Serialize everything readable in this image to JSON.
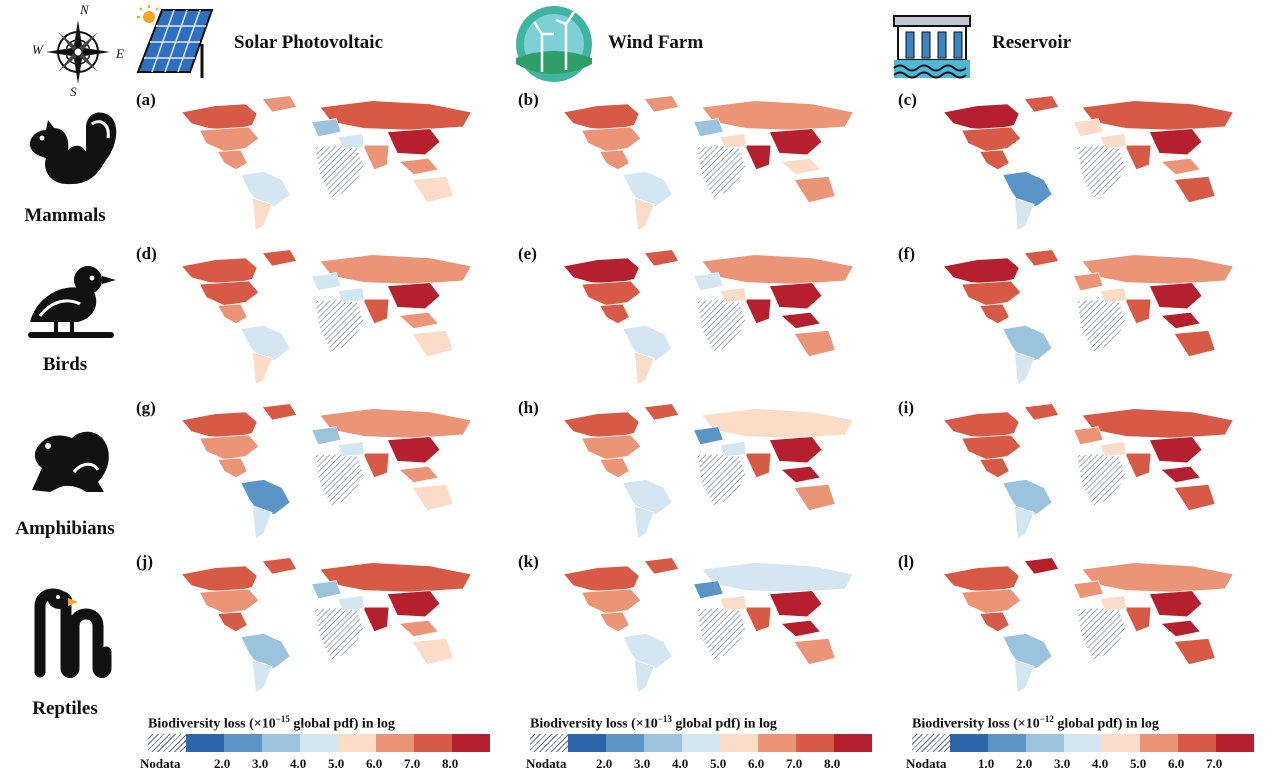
{
  "header": {
    "columns": [
      {
        "title": "Solar Photovoltaic",
        "icon": "solar-panel-icon"
      },
      {
        "title": "Wind Farm",
        "icon": "wind-turbine-icon"
      },
      {
        "title": "Reservoir",
        "icon": "dam-icon"
      }
    ],
    "compass": {
      "icon": "compass-rose-icon",
      "n": "N",
      "e": "E",
      "s": "S",
      "w": "W"
    }
  },
  "rows": [
    {
      "label": "Mammals",
      "icon": "squirrel-icon"
    },
    {
      "label": "Birds",
      "icon": "bird-icon"
    },
    {
      "label": "Amphibians",
      "icon": "frog-icon"
    },
    {
      "label": "Reptiles",
      "icon": "snake-icon"
    }
  ],
  "panels": [
    "(a)",
    "(b)",
    "(c)",
    "(d)",
    "(e)",
    "(f)",
    "(g)",
    "(h)",
    "(i)",
    "(j)",
    "(k)",
    "(l)"
  ],
  "legends": [
    {
      "title_pre": "Biodiversity loss (×10",
      "exp": "−15",
      "title_post": " global pdf)  in log",
      "nodata": "Nodata",
      "ticks": [
        "2.0",
        "3.0",
        "4.0",
        "5.0",
        "6.0",
        "7.0",
        "8.0"
      ]
    },
    {
      "title_pre": "Biodiversity loss (×10",
      "exp": "−13",
      "title_post": " global pdf)  in log",
      "nodata": "Nodata",
      "ticks": [
        "2.0",
        "3.0",
        "4.0",
        "5.0",
        "6.0",
        "7.0",
        "8.0"
      ]
    },
    {
      "title_pre": "Biodiversity loss (×10",
      "exp": "−12",
      "title_post": " global pdf)  in log",
      "nodata": "Nodata",
      "ticks": [
        "1.0",
        "2.0",
        "3.0",
        "4.0",
        "5.0",
        "6.0",
        "7.0"
      ]
    }
  ],
  "colors": {
    "scale": [
      "#2b66a8",
      "#5b95c7",
      "#9cc3dd",
      "#d4e6f1",
      "#fbdcc9",
      "#ec9477",
      "#d65a45",
      "#b51f2e"
    ],
    "nodata": "#5a6e96"
  }
}
